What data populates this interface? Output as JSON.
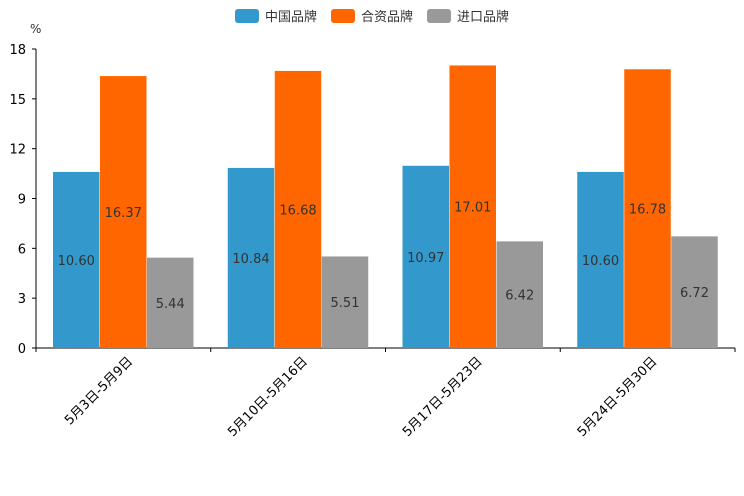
{
  "chart_data": {
    "type": "bar",
    "unit": "%",
    "categories": [
      "5月3日-5月9日",
      "5月10日-5月16日",
      "5月17日-5月23日",
      "5月24日-5月30日"
    ],
    "series": [
      {
        "name": "中国品牌",
        "color": "#3399cc",
        "values": [
          10.6,
          10.84,
          10.97,
          10.6
        ],
        "labels": [
          "10.60",
          "10.84",
          "10.97",
          "10.60"
        ]
      },
      {
        "name": "合资品牌",
        "color": "#ff6600",
        "values": [
          16.37,
          16.68,
          17.01,
          16.78
        ],
        "labels": [
          "16.37",
          "16.68",
          "17.01",
          "16.78"
        ]
      },
      {
        "name": "进口品牌",
        "color": "#999999",
        "values": [
          5.44,
          5.51,
          6.42,
          6.72
        ],
        "labels": [
          "5.44",
          "5.51",
          "6.42",
          "6.72"
        ]
      }
    ],
    "yticks": [
      "0",
      "3",
      "6",
      "9",
      "12",
      "15",
      "18"
    ],
    "ylim": [
      0,
      18
    ],
    "grid": false,
    "legend_position": "top-center"
  }
}
